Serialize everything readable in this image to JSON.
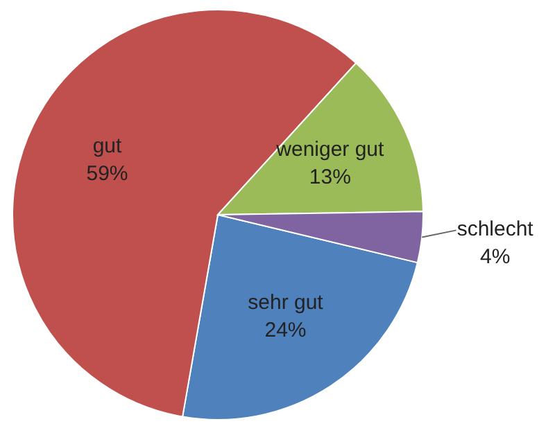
{
  "chart_data": {
    "type": "pie",
    "categories": [
      "sehr gut",
      "gut",
      "weniger gut",
      "schlecht"
    ],
    "values": [
      24,
      59,
      13,
      4
    ],
    "colors": [
      "#4f81bd",
      "#c0504d",
      "#9bbb59",
      "#8064a2"
    ],
    "value_labels": [
      "24%",
      "59%",
      "13%",
      "4%"
    ]
  }
}
